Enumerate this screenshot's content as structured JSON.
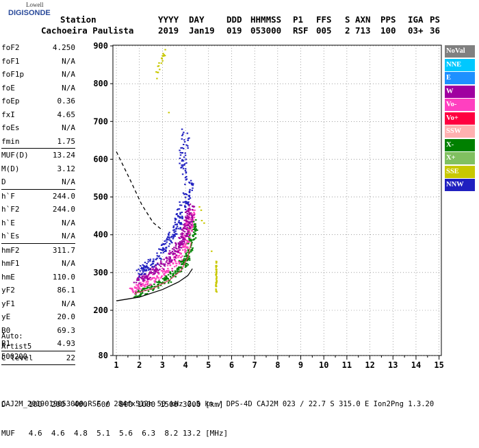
{
  "logo": {
    "line1": "Lowell",
    "line2": "DIGISONDE"
  },
  "header": {
    "labels": [
      "Station",
      "YYYY",
      "DAY",
      "DDD",
      "HHMMSS",
      "P1",
      "FFS",
      "S",
      "AXN",
      "PPS",
      "IGA",
      "PS"
    ],
    "values": [
      "Cachoeira Paulista",
      "2019",
      "Jan19",
      "019",
      "053000",
      "RSF",
      "005",
      "2",
      "713",
      "100",
      "03+",
      "36"
    ]
  },
  "params": [
    {
      "k": "foF2",
      "v": "4.250"
    },
    {
      "k": "foF1",
      "v": "N/A"
    },
    {
      "k": "foF1p",
      "v": "N/A"
    },
    {
      "k": "foE",
      "v": "N/A"
    },
    {
      "k": "foEp",
      "v": "0.36"
    },
    {
      "k": "fxI",
      "v": "4.65"
    },
    {
      "k": "foEs",
      "v": "N/A"
    },
    {
      "k": "fmin",
      "v": "1.75"
    },
    {
      "sep": true
    },
    {
      "k": "MUF(D)",
      "v": "13.24"
    },
    {
      "k": "M(D)",
      "v": "3.12"
    },
    {
      "k": "D",
      "v": "N/A"
    },
    {
      "sep": true
    },
    {
      "k": "h`F",
      "v": "244.0"
    },
    {
      "k": "h`F2",
      "v": "244.0"
    },
    {
      "k": "h`E",
      "v": "N/A"
    },
    {
      "k": "h`Es",
      "v": "N/A"
    },
    {
      "sep": true
    },
    {
      "k": "hmF2",
      "v": "311.7"
    },
    {
      "k": "hmF1",
      "v": "N/A"
    },
    {
      "k": "hmE",
      "v": "110.0"
    },
    {
      "k": "yF2",
      "v": "86.1"
    },
    {
      "k": "yF1",
      "v": "N/A"
    },
    {
      "k": "yE",
      "v": "20.0"
    },
    {
      "k": "B0",
      "v": "69.3"
    },
    {
      "k": "B1",
      "v": "4.93"
    },
    {
      "sep": true
    },
    {
      "k": "C-level",
      "v": "22"
    },
    {
      "sep": true
    }
  ],
  "auto": {
    "line1": "Auto:",
    "line2": "Artist5",
    "line3": "500200"
  },
  "legend": [
    {
      "label": "NoVal",
      "color": "#808080"
    },
    {
      "label": "NNE",
      "color": "#00c8ff"
    },
    {
      "label": "E",
      "color": "#1e90ff"
    },
    {
      "label": "W",
      "color": "#a000a0"
    },
    {
      "label": "Vo-",
      "color": "#ff40c0"
    },
    {
      "label": "Vo+",
      "color": "#ff0040"
    },
    {
      "label": "SSW",
      "color": "#ffb0b0"
    },
    {
      "label": "X-",
      "color": "#008000"
    },
    {
      "label": "X+",
      "color": "#80c060"
    },
    {
      "label": "SSE",
      "color": "#c8c800"
    },
    {
      "label": "NNW",
      "color": "#2020c0"
    }
  ],
  "table": {
    "row1_label": "D",
    "row1_values": [
      "100",
      "200",
      "400",
      "600",
      "800",
      "1000",
      "1500",
      "3000"
    ],
    "row1_unit": "[km]",
    "row2_label": "MUF",
    "row2_values": [
      "4.6",
      "4.6",
      "4.8",
      "5.1",
      "5.6",
      "6.3",
      "8.2",
      "13.2"
    ],
    "row2_unit": "[MHz]"
  },
  "footer": "CAJ2M_2019019053000.RSF / 284fx512h 50 kHz 2.5 km / DPS-4D CAJ2M 023 / 22.7 S 315.0 E Ion2Png 1.3.20",
  "chart_data": {
    "type": "scatter",
    "x_ticks": [
      1,
      2,
      3,
      4,
      5,
      6,
      7,
      8,
      9,
      10,
      11,
      12,
      13,
      14,
      15
    ],
    "y_ticks": [
      80,
      200,
      300,
      400,
      500,
      600,
      700,
      800,
      900
    ],
    "xlim": [
      1,
      15
    ],
    "ylim_labels": [
      "80",
      "900"
    ],
    "grid": true,
    "y_axis_note": "nonlinear: 80 at bottom, 200..900 linear above",
    "traces": [
      {
        "name": "X-",
        "color": "#008000",
        "points": [
          [
            1.8,
            245
          ],
          [
            2.2,
            255
          ],
          [
            2.7,
            268
          ],
          [
            3.2,
            285
          ],
          [
            3.6,
            305
          ],
          [
            3.9,
            330
          ],
          [
            4.1,
            360
          ],
          [
            4.25,
            400
          ],
          [
            4.35,
            440
          ]
        ]
      },
      {
        "name": "Vo-",
        "color": "#ff40c0",
        "points": [
          [
            1.7,
            255
          ],
          [
            2.1,
            268
          ],
          [
            2.6,
            285
          ],
          [
            3.1,
            305
          ],
          [
            3.5,
            330
          ],
          [
            3.8,
            360
          ],
          [
            4.0,
            390
          ],
          [
            4.15,
            430
          ],
          [
            4.25,
            470
          ]
        ]
      },
      {
        "name": "W",
        "color": "#a000a0",
        "points": [
          [
            1.8,
            275
          ],
          [
            2.3,
            292
          ],
          [
            2.8,
            315
          ],
          [
            3.3,
            340
          ],
          [
            3.6,
            365
          ],
          [
            3.9,
            400
          ],
          [
            4.1,
            440
          ],
          [
            4.2,
            480
          ]
        ]
      },
      {
        "name": "NNW",
        "color": "#2020c0",
        "points": [
          [
            1.9,
            300
          ],
          [
            2.4,
            320
          ],
          [
            2.9,
            350
          ],
          [
            3.3,
            390
          ],
          [
            3.6,
            430
          ],
          [
            3.9,
            480
          ],
          [
            4.2,
            530
          ],
          [
            3.8,
            600
          ],
          [
            4.0,
            680
          ]
        ]
      },
      {
        "name": "SSE",
        "color": "#c8c800",
        "points": [
          [
            5.3,
            250
          ],
          [
            5.3,
            270
          ],
          [
            5.3,
            290
          ],
          [
            5.3,
            310
          ],
          [
            5.3,
            330
          ],
          [
            2.7,
            820
          ],
          [
            2.9,
            860
          ],
          [
            3.1,
            890
          ]
        ]
      }
    ],
    "curves": [
      {
        "name": "profile",
        "style": "solid",
        "color": "#000",
        "points": [
          [
            1.0,
            225
          ],
          [
            2.0,
            235
          ],
          [
            3.0,
            255
          ],
          [
            3.7,
            275
          ],
          [
            4.1,
            292
          ],
          [
            4.3,
            310
          ]
        ]
      },
      {
        "name": "profile-upper",
        "style": "solid",
        "color": "#d04060",
        "points": [
          [
            1.8,
            245
          ],
          [
            2.6,
            258
          ],
          [
            3.3,
            280
          ],
          [
            3.8,
            305
          ],
          [
            4.1,
            340
          ],
          [
            4.25,
            380
          ]
        ]
      },
      {
        "name": "MUF-curve",
        "style": "dashed",
        "color": "#000",
        "points": [
          [
            1.0,
            620
          ],
          [
            1.6,
            545
          ],
          [
            2.1,
            480
          ],
          [
            2.6,
            432
          ],
          [
            3.0,
            412
          ]
        ]
      }
    ]
  }
}
